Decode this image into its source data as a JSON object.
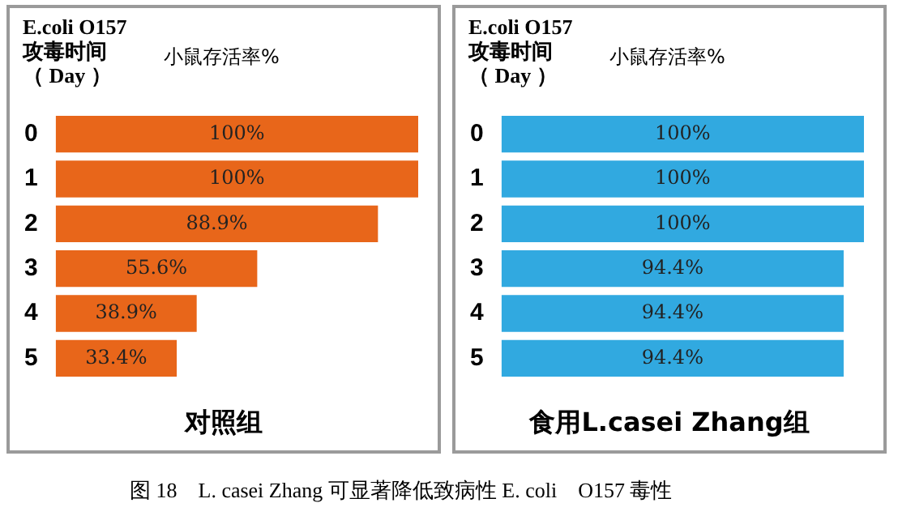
{
  "chart_data": [
    {
      "type": "bar",
      "orientation": "horizontal",
      "title": "对照组",
      "xlabel": "小鼠存活率%",
      "ylabel": "E.coli O157\n攻毒时间（ Day ）",
      "categories": [
        "0",
        "1",
        "2",
        "3",
        "4",
        "5"
      ],
      "values": [
        100,
        100,
        88.9,
        55.6,
        38.9,
        33.4
      ],
      "value_labels": [
        "100%",
        "100%",
        "88.9%",
        "55.6%",
        "38.9%",
        "33.4%"
      ],
      "color": "#e8661a",
      "xlim": [
        0,
        100
      ],
      "tick_labels": "y",
      "grid": false,
      "legend": false,
      "annotations": [
        "图 18　L. casei Zhang 可显著降低致病性 E. coli　O157 毒性"
      ]
    },
    {
      "type": "bar",
      "orientation": "horizontal",
      "title": "食用L.casei Zhang组",
      "xlabel": "小鼠存活率%",
      "ylabel": "E.coli O157\n攻毒时间（ Day ）",
      "categories": [
        "0",
        "1",
        "2",
        "3",
        "4",
        "5"
      ],
      "values": [
        100,
        100,
        100,
        94.4,
        94.4,
        94.4
      ],
      "value_labels": [
        "100%",
        "100%",
        "100%",
        "94.4%",
        "94.4%",
        "94.4%"
      ],
      "color": "#31a9e0",
      "xlim": [
        0,
        100
      ],
      "tick_labels": "y",
      "grid": false,
      "legend": false
    }
  ]
}
